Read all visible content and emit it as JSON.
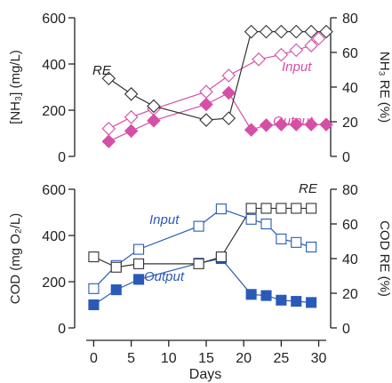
{
  "chart_data": [
    {
      "type": "line",
      "xlim": [
        -1,
        31
      ],
      "ylim": [
        0,
        600
      ],
      "ylim_right": [
        0,
        80
      ],
      "yticks": [
        0,
        200,
        400,
        600
      ],
      "yticks_right": [
        0,
        20,
        40,
        60,
        80
      ],
      "ylabel_html": "[NH₃] (mg/L)",
      "ylabel_right": "NH₃ RE (%)",
      "series": [
        {
          "name": "Input",
          "axis": "left",
          "color": "#d64fa6",
          "marker": "diamond-open",
          "x": [
            2,
            5,
            8,
            15,
            18,
            22,
            25,
            27,
            29,
            30
          ],
          "y": [
            120,
            170,
            205,
            280,
            350,
            420,
            440,
            460,
            480,
            510
          ]
        },
        {
          "name": "Output",
          "axis": "left",
          "color": "#d64fa6",
          "marker": "diamond-filled",
          "x": [
            2,
            5,
            8,
            15,
            18,
            21,
            23,
            25,
            27,
            29,
            31
          ],
          "y": [
            65,
            110,
            155,
            225,
            275,
            115,
            135,
            138,
            138,
            138,
            138
          ]
        },
        {
          "name": "RE",
          "axis": "right",
          "color": "#333333",
          "marker": "diamond-open",
          "x": [
            2,
            5,
            8,
            15,
            18,
            21,
            23,
            25,
            27,
            29,
            31
          ],
          "y": [
            45,
            36,
            29,
            21,
            22,
            72,
            72,
            72,
            72,
            72,
            72
          ]
        }
      ]
    },
    {
      "type": "line",
      "xlim": [
        -1,
        31
      ],
      "ylim": [
        0,
        600
      ],
      "ylim_right": [
        0,
        80
      ],
      "yticks": [
        0,
        200,
        400,
        600
      ],
      "yticks_right": [
        0,
        20,
        40,
        60,
        80
      ],
      "xticks": [
        0,
        5,
        10,
        15,
        20,
        25,
        30
      ],
      "xlabel": "Days",
      "ylabel_html": "COD (mg O₂/L)",
      "ylabel_right": "COD RE (%)",
      "series": [
        {
          "name": "Input",
          "axis": "left",
          "color": "#2a5ab8",
          "marker": "square-open",
          "x": [
            0,
            3,
            6,
            14,
            17,
            21,
            23,
            25,
            27,
            29
          ],
          "y": [
            170,
            270,
            340,
            440,
            515,
            470,
            450,
            385,
            370,
            350
          ]
        },
        {
          "name": "Output",
          "axis": "left",
          "color": "#2a5ab8",
          "marker": "square-filled",
          "x": [
            0,
            3,
            6,
            14,
            17,
            21,
            23,
            25,
            27,
            29
          ],
          "y": [
            100,
            165,
            210,
            280,
            300,
            145,
            140,
            120,
            115,
            110
          ]
        },
        {
          "name": "RE",
          "axis": "right",
          "color": "#333333",
          "marker": "square-open",
          "x": [
            0,
            3,
            6,
            14,
            17,
            21,
            23,
            25,
            27,
            29
          ],
          "y": [
            41,
            35,
            37,
            37,
            41,
            69,
            69,
            69,
            69,
            69
          ]
        }
      ]
    }
  ]
}
